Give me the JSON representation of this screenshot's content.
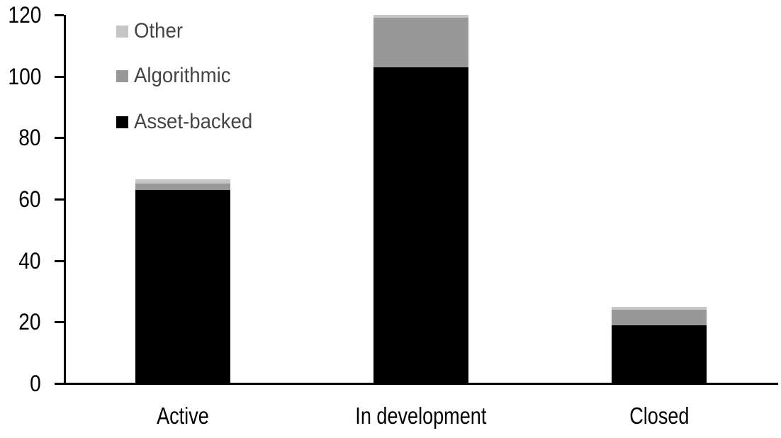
{
  "chart_data": {
    "type": "bar",
    "stacked": true,
    "title": "",
    "xlabel": "",
    "ylabel": "",
    "categories": [
      "Active",
      "In development",
      "Closed"
    ],
    "series": [
      {
        "name": "Asset-backed",
        "color": "#000000",
        "values": [
          63,
          103,
          19
        ]
      },
      {
        "name": "Algorithmic",
        "color": "#989898",
        "values": [
          2,
          16,
          5
        ]
      },
      {
        "name": "Other",
        "color": "#c6c6c6",
        "values": [
          1.5,
          1,
          1
        ]
      }
    ],
    "stack_totals": [
      66.5,
      120,
      25
    ],
    "ylim": [
      0,
      120
    ],
    "yticks": [
      0,
      20,
      40,
      60,
      80,
      100,
      120
    ],
    "grid": false,
    "legend_position": "top-left",
    "legend_order_top_to_bottom": [
      "Other",
      "Algorithmic",
      "Asset-backed"
    ],
    "axis_color": "#000000",
    "tick_label_color": "#000000",
    "legend_text_color": "#454545",
    "background_color": "#ffffff"
  }
}
